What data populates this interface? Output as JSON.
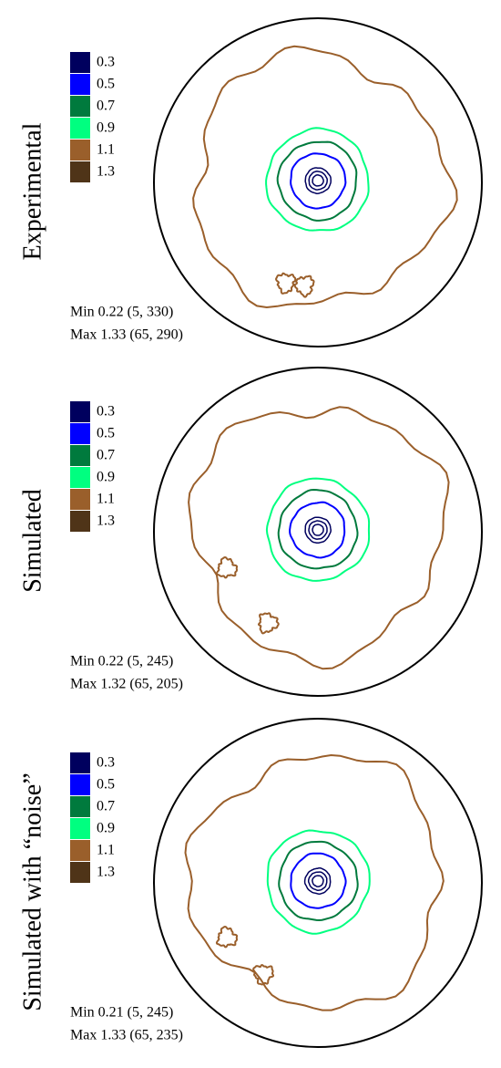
{
  "chart_data": [
    {
      "type": "contour",
      "title": "Experimental",
      "levels": [
        0.3,
        0.5,
        0.7,
        0.9,
        1.1,
        1.3
      ],
      "colors": [
        "#00005e",
        "#0000ff",
        "#007a3d",
        "#00ff80",
        "#9a5f2b",
        "#4f3418"
      ],
      "annotations": [
        "Min 0.22 (5, 330)",
        "Max 1.33 (65, 290)"
      ]
    },
    {
      "type": "contour",
      "title": "Simulated",
      "levels": [
        0.3,
        0.5,
        0.7,
        0.9,
        1.1,
        1.3
      ],
      "colors": [
        "#00005e",
        "#0000ff",
        "#007a3d",
        "#00ff80",
        "#9a5f2b",
        "#4f3418"
      ],
      "annotations": [
        "Min 0.22 (5, 245)",
        "Max 1.32 (65, 205)"
      ]
    },
    {
      "type": "contour",
      "title": "Simulated with “noise”",
      "levels": [
        0.3,
        0.5,
        0.7,
        0.9,
        1.1,
        1.3
      ],
      "colors": [
        "#00005e",
        "#0000ff",
        "#007a3d",
        "#00ff80",
        "#9a5f2b",
        "#4f3418"
      ],
      "annotations": [
        "Min 0.21 (5, 245)",
        "Max 1.33 (65, 235)"
      ]
    }
  ]
}
